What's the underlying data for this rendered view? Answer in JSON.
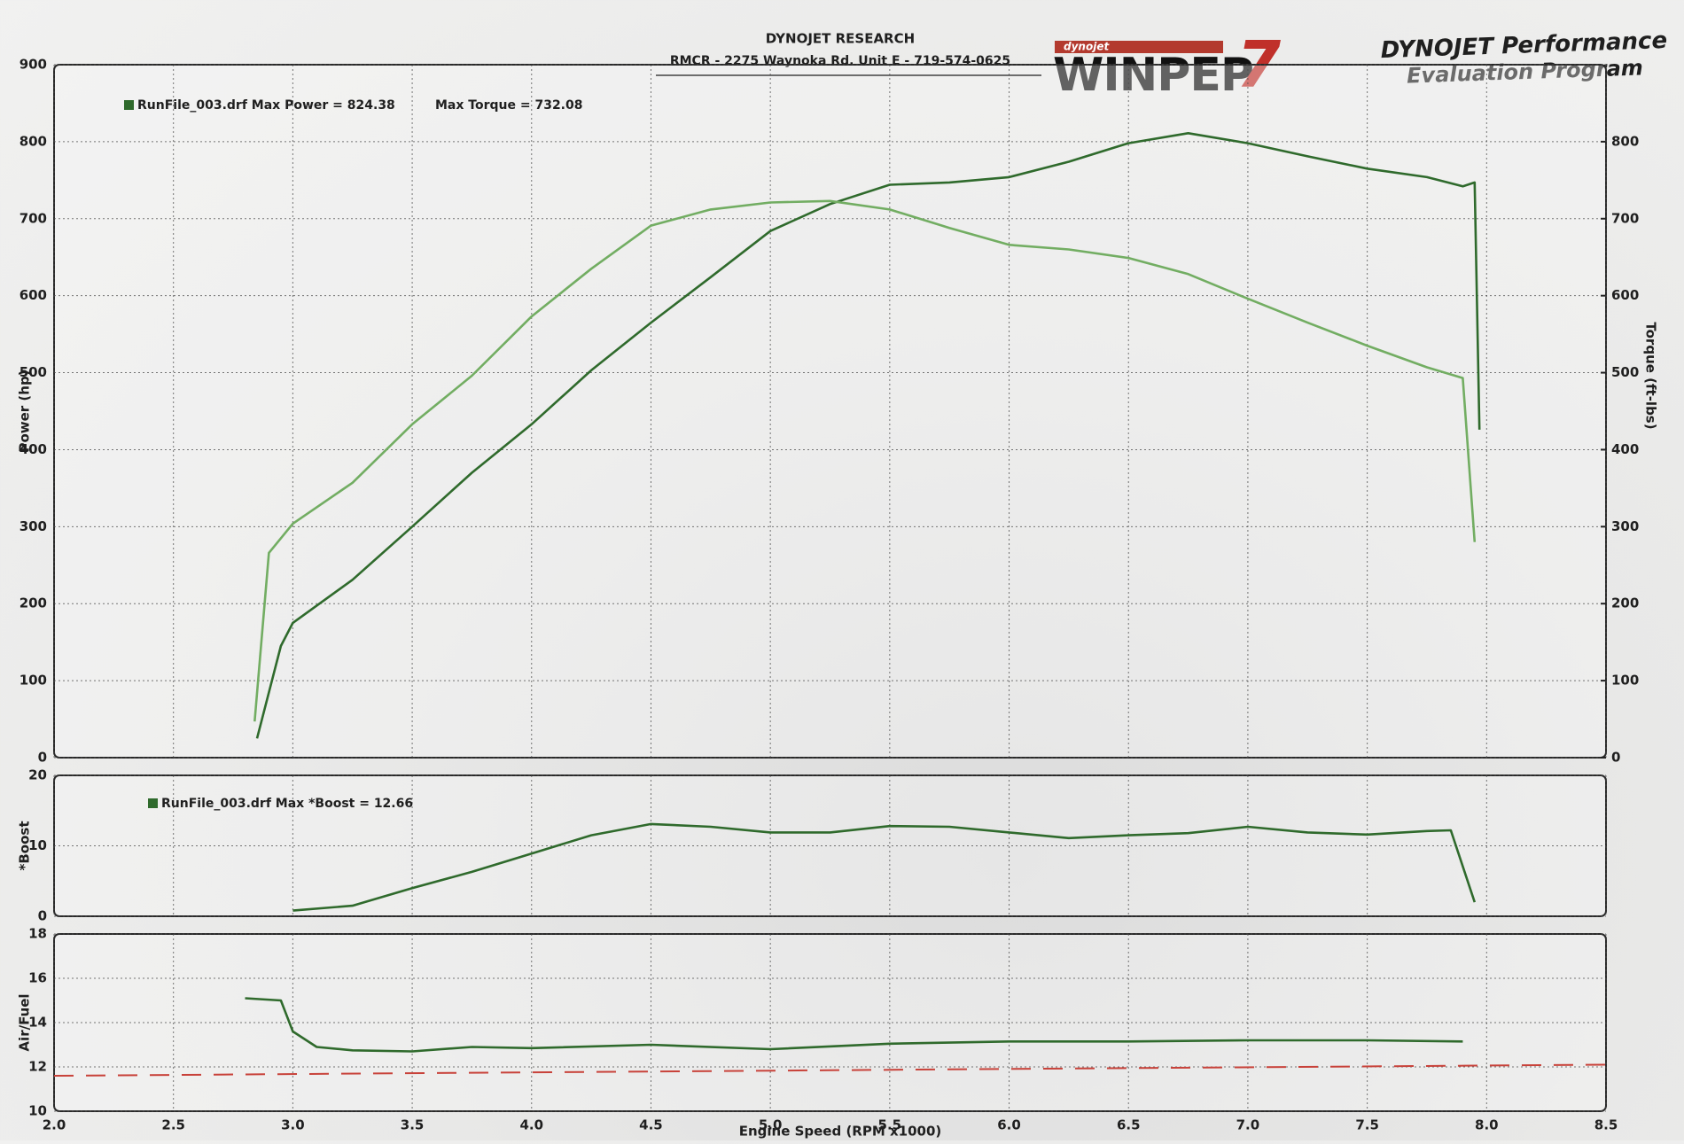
{
  "header": {
    "company": "DYNOJET RESEARCH",
    "address": "RMCR  - 2275 Waynoka Rd. Unit E - 719-574-0625",
    "logo_top": "dynojet",
    "logo": "WINPEP",
    "logo_mark": "7",
    "product": "DYNOJET Performance",
    "product_sub": "Evaluation Program"
  },
  "chart_data": [
    {
      "type": "line",
      "ylabel": "Power (hp)",
      "y2label": "Torque (ft-lbs)",
      "annotations": [
        "RunFile_003.drf Max Power = 824.38",
        "Max Torque = 732.08"
      ],
      "xlim": [
        2,
        8.5
      ],
      "ylim": [
        0,
        900
      ],
      "yticks": [
        0,
        100,
        200,
        300,
        400,
        500,
        600,
        700,
        800,
        900
      ],
      "y2lim": [
        0,
        900
      ],
      "y2ticks": [
        0,
        100,
        200,
        300,
        400,
        500,
        600,
        700,
        800
      ],
      "grid": true,
      "series": [
        {
          "color": "#2f6a2c",
          "x": [
            2.85,
            2.95,
            3.0,
            3.25,
            3.5,
            3.75,
            4.0,
            4.25,
            4.5,
            4.75,
            5.0,
            5.25,
            5.5,
            5.75,
            6.0,
            6.25,
            6.5,
            6.75,
            7.0,
            7.25,
            7.5,
            7.75,
            7.9,
            7.95,
            7.97
          ],
          "values": [
            25,
            145,
            175,
            231,
            300,
            370,
            433,
            503,
            565,
            624,
            684,
            719,
            744,
            747,
            754,
            774,
            798,
            811,
            798,
            781,
            765,
            754,
            742,
            747,
            426
          ]
        },
        {
          "color": "#72ad62",
          "axis": "y2",
          "x": [
            2.84,
            2.9,
            3.0,
            3.25,
            3.5,
            3.75,
            4.0,
            4.25,
            4.5,
            4.75,
            5.0,
            5.25,
            5.5,
            5.75,
            6.0,
            6.25,
            6.5,
            6.75,
            7.0,
            7.25,
            7.5,
            7.75,
            7.9,
            7.95
          ],
          "values": [
            47,
            266,
            304,
            357,
            433,
            496,
            573,
            635,
            691,
            712,
            721,
            723,
            712,
            688,
            666,
            660,
            649,
            628,
            596,
            565,
            535,
            507,
            493,
            280
          ]
        }
      ]
    },
    {
      "type": "line",
      "ylabel": "*Boost",
      "annotations": [
        "RunFile_003.drf Max *Boost = 12.66"
      ],
      "xlim": [
        2,
        8.5
      ],
      "ylim": [
        0,
        20
      ],
      "yticks": [
        0,
        10,
        20
      ],
      "grid": true,
      "series": [
        {
          "color": "#2f6a2c",
          "x": [
            3.0,
            3.25,
            3.5,
            3.75,
            4.0,
            4.25,
            4.5,
            4.75,
            5.0,
            5.25,
            5.5,
            5.75,
            6.0,
            6.25,
            6.5,
            6.75,
            7.0,
            7.25,
            7.5,
            7.75,
            7.85,
            7.95
          ],
          "values": [
            0.8,
            1.5,
            4,
            6.3,
            8.9,
            11.5,
            13.1,
            12.7,
            11.9,
            11.9,
            12.8,
            12.7,
            11.9,
            11.1,
            11.5,
            11.8,
            12.7,
            11.9,
            11.6,
            12.1,
            12.2,
            2
          ]
        }
      ]
    },
    {
      "type": "line",
      "ylabel": "Air/Fuel",
      "xlabel": "Engine Speed (RPM x1000)",
      "xlim": [
        2,
        8.5
      ],
      "ylim": [
        10,
        18
      ],
      "yticks": [
        10,
        12,
        14,
        16,
        18
      ],
      "grid": true,
      "xticks": [
        {
          "value": 2,
          "label": "2.0"
        },
        2.5,
        {
          "value": 3,
          "label": "3.0"
        },
        3.5,
        {
          "value": 4,
          "label": "4.0"
        },
        4.5,
        {
          "value": 5,
          "label": "5.0"
        },
        5.5,
        {
          "value": 6,
          "label": "6.0"
        },
        6.5,
        {
          "value": 7,
          "label": "7.0"
        },
        7.5,
        {
          "value": 8,
          "label": "8.0"
        },
        8.5
      ],
      "series": [
        {
          "color": "#2f6a2c",
          "x": [
            2.8,
            2.95,
            3.0,
            3.1,
            3.25,
            3.5,
            3.75,
            4.0,
            4.5,
            5.0,
            5.5,
            6.0,
            6.5,
            7.0,
            7.5,
            7.9
          ],
          "values": [
            15.1,
            15.0,
            13.6,
            12.9,
            12.75,
            12.7,
            12.9,
            12.85,
            13.0,
            12.8,
            13.05,
            13.15,
            13.15,
            13.2,
            13.2,
            13.15
          ]
        },
        {
          "color": "#c8423a",
          "dash": true,
          "x": [
            2,
            8.5
          ],
          "values": [
            11.6,
            12.1
          ]
        }
      ]
    }
  ]
}
